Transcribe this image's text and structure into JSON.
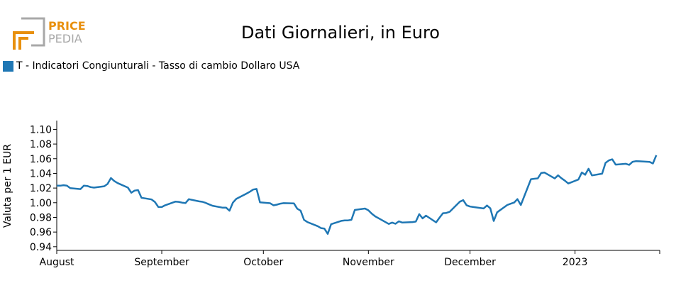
{
  "logo": {
    "line1": "PRICE",
    "line2": "PEDIA",
    "accent": "#e8900e",
    "secondary": "#a8a8a8"
  },
  "chart_data": {
    "type": "line",
    "title": "Dati Giornalieri, in Euro",
    "xlabel": "",
    "ylabel": "Valuta per 1 EUR",
    "ylim": [
      0.935,
      1.112
    ],
    "yticks": [
      0.94,
      0.96,
      0.98,
      1.0,
      1.02,
      1.04,
      1.06,
      1.08,
      1.1
    ],
    "ytick_labels": [
      "0.94",
      "0.96",
      "0.98",
      "1.00",
      "1.02",
      "1.04",
      "1.06",
      "1.08",
      "1.10"
    ],
    "xlim": [
      "2022-08-01",
      "2023-01-26"
    ],
    "xticks": [
      "2022-08-01",
      "2022-09-01",
      "2022-10-01",
      "2022-11-01",
      "2022-12-01",
      "2023-01-01"
    ],
    "xtick_labels": [
      "August",
      "September",
      "October",
      "November",
      "December",
      "2023"
    ],
    "grid": false,
    "legend_position": "top-left",
    "series": [
      {
        "name": "T - Indicatori Congiunturali - Tasso di cambio Dollaro USA",
        "color": "#1f77b4",
        "points": [
          [
            "2022-08-01",
            1.0233
          ],
          [
            "2022-08-02",
            1.0232
          ],
          [
            "2022-08-03",
            1.0239
          ],
          [
            "2022-08-04",
            1.0233
          ],
          [
            "2022-08-05",
            1.0199
          ],
          [
            "2022-08-08",
            1.0186
          ],
          [
            "2022-08-09",
            1.0233
          ],
          [
            "2022-08-10",
            1.0228
          ],
          [
            "2022-08-11",
            1.0213
          ],
          [
            "2022-08-12",
            1.0206
          ],
          [
            "2022-08-15",
            1.0224
          ],
          [
            "2022-08-16",
            1.0255
          ],
          [
            "2022-08-17",
            1.0337
          ],
          [
            "2022-08-18",
            1.0295
          ],
          [
            "2022-08-19",
            1.0267
          ],
          [
            "2022-08-22",
            1.0206
          ],
          [
            "2022-08-23",
            1.0136
          ],
          [
            "2022-08-24",
            1.0165
          ],
          [
            "2022-08-25",
            1.0172
          ],
          [
            "2022-08-26",
            1.0068
          ],
          [
            "2022-08-29",
            1.0044
          ],
          [
            "2022-08-30",
            1.0009
          ],
          [
            "2022-08-31",
            0.9941
          ],
          [
            "2022-09-01",
            0.9941
          ],
          [
            "2022-09-02",
            0.9965
          ],
          [
            "2022-09-05",
            1.0014
          ],
          [
            "2022-09-06",
            1.0012
          ],
          [
            "2022-09-07",
            1.0001
          ],
          [
            "2022-09-08",
            0.9995
          ],
          [
            "2022-09-09",
            1.0048
          ],
          [
            "2022-09-12",
            1.0018
          ],
          [
            "2022-09-13",
            1.0013
          ],
          [
            "2022-09-14",
            0.9997
          ],
          [
            "2022-09-15",
            0.9977
          ],
          [
            "2022-09-16",
            0.9958
          ],
          [
            "2022-09-19",
            0.9932
          ],
          [
            "2022-09-20",
            0.9932
          ],
          [
            "2022-09-21",
            0.9891
          ],
          [
            "2022-09-22",
            1.0001
          ],
          [
            "2022-09-23",
            1.0052
          ],
          [
            "2022-09-26",
            1.0124
          ],
          [
            "2022-09-27",
            1.015
          ],
          [
            "2022-09-28",
            1.018
          ],
          [
            "2022-09-29",
            1.0188
          ],
          [
            "2022-09-30",
            1.0005
          ],
          [
            "2022-10-03",
            0.9993
          ],
          [
            "2022-10-04",
            0.9964
          ],
          [
            "2022-10-05",
            0.9974
          ],
          [
            "2022-10-06",
            0.9987
          ],
          [
            "2022-10-07",
            0.9994
          ],
          [
            "2022-10-10",
            0.9991
          ],
          [
            "2022-10-11",
            0.9919
          ],
          [
            "2022-10-12",
            0.9891
          ],
          [
            "2022-10-13",
            0.9766
          ],
          [
            "2022-10-14",
            0.9736
          ],
          [
            "2022-10-17",
            0.9681
          ],
          [
            "2022-10-18",
            0.9654
          ],
          [
            "2022-10-19",
            0.9648
          ],
          [
            "2022-10-20",
            0.9575
          ],
          [
            "2022-10-21",
            0.9707
          ],
          [
            "2022-10-24",
            0.9752
          ],
          [
            "2022-10-25",
            0.9758
          ],
          [
            "2022-10-26",
            0.9759
          ],
          [
            "2022-10-27",
            0.9767
          ],
          [
            "2022-10-28",
            0.9901
          ],
          [
            "2022-10-31",
            0.9921
          ],
          [
            "2022-11-01",
            0.9896
          ],
          [
            "2022-11-02",
            0.985
          ],
          [
            "2022-11-03",
            0.9814
          ],
          [
            "2022-11-04",
            0.9788
          ],
          [
            "2022-11-07",
            0.9711
          ],
          [
            "2022-11-08",
            0.9729
          ],
          [
            "2022-11-09",
            0.9713
          ],
          [
            "2022-11-10",
            0.9747
          ],
          [
            "2022-11-11",
            0.9729
          ],
          [
            "2022-11-14",
            0.9736
          ],
          [
            "2022-11-15",
            0.9743
          ],
          [
            "2022-11-16",
            0.9844
          ],
          [
            "2022-11-17",
            0.9786
          ],
          [
            "2022-11-18",
            0.9824
          ],
          [
            "2022-11-21",
            0.9732
          ],
          [
            "2022-11-22",
            0.9796
          ],
          [
            "2022-11-23",
            0.9857
          ],
          [
            "2022-11-24",
            0.9861
          ],
          [
            "2022-11-25",
            0.9876
          ],
          [
            "2022-11-28",
            1.0014
          ],
          [
            "2022-11-29",
            1.0035
          ],
          [
            "2022-11-30",
            0.9965
          ],
          [
            "2022-12-01",
            0.9948
          ],
          [
            "2022-12-02",
            0.9941
          ],
          [
            "2022-12-05",
            0.9922
          ],
          [
            "2022-12-06",
            0.9962
          ],
          [
            "2022-12-07",
            0.9924
          ],
          [
            "2022-12-08",
            0.9751
          ],
          [
            "2022-12-09",
            0.9869
          ],
          [
            "2022-12-12",
            0.9969
          ],
          [
            "2022-12-13",
            0.9986
          ],
          [
            "2022-12-14",
            1.0002
          ],
          [
            "2022-12-15",
            1.0049
          ],
          [
            "2022-12-16",
            0.9969
          ],
          [
            "2022-12-19",
            1.0321
          ],
          [
            "2022-12-20",
            1.0327
          ],
          [
            "2022-12-21",
            1.0332
          ],
          [
            "2022-12-22",
            1.0405
          ],
          [
            "2022-12-23",
            1.0411
          ],
          [
            "2022-12-26",
            1.0331
          ],
          [
            "2022-12-27",
            1.0373
          ],
          [
            "2022-12-28",
            1.0334
          ],
          [
            "2022-12-29",
            1.0301
          ],
          [
            "2022-12-30",
            1.0262
          ],
          [
            "2023-01-02",
            1.0316
          ],
          [
            "2023-01-03",
            1.0412
          ],
          [
            "2023-01-04",
            1.0381
          ],
          [
            "2023-01-05",
            1.0463
          ],
          [
            "2023-01-06",
            1.0372
          ],
          [
            "2023-01-09",
            1.0396
          ],
          [
            "2023-01-10",
            1.0544
          ],
          [
            "2023-01-11",
            1.0577
          ],
          [
            "2023-01-12",
            1.0592
          ],
          [
            "2023-01-13",
            1.0519
          ],
          [
            "2023-01-16",
            1.0531
          ],
          [
            "2023-01-17",
            1.0516
          ],
          [
            "2023-01-18",
            1.0558
          ],
          [
            "2023-01-19",
            1.0567
          ],
          [
            "2023-01-20",
            1.0565
          ],
          [
            "2023-01-23",
            1.0557
          ],
          [
            "2023-01-24",
            1.0535
          ],
          [
            "2023-01-25",
            1.0648
          ]
        ]
      }
    ]
  }
}
